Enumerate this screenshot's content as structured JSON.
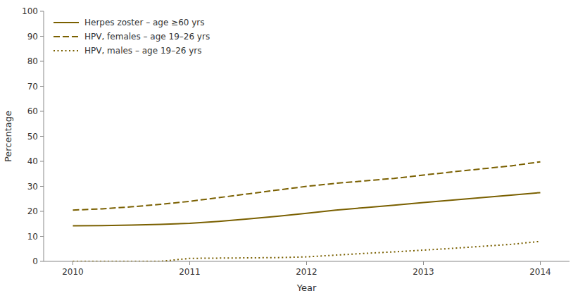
{
  "chart_data": {
    "type": "line",
    "x": [
      2010,
      2010.25,
      2010.5,
      2010.75,
      2011,
      2011.25,
      2011.5,
      2011.75,
      2012,
      2012.25,
      2012.5,
      2012.75,
      2013,
      2013.25,
      2013.5,
      2013.75,
      2014
    ],
    "series": [
      {
        "name": "Herpes zoster – age ≥60 yrs",
        "color": "#7a6000",
        "line_style": "solid",
        "values": [
          14.2,
          14.3,
          14.5,
          14.8,
          15.2,
          16.0,
          17.0,
          18.0,
          19.2,
          20.5,
          21.5,
          22.5,
          23.5,
          24.5,
          25.5,
          26.5,
          27.5
        ]
      },
      {
        "name": "HPV, females – age 19–26 yrs",
        "color": "#7a6000",
        "line_style": "dashed",
        "values": [
          20.5,
          21.0,
          21.8,
          22.8,
          24.0,
          25.5,
          27.0,
          28.5,
          30.0,
          31.2,
          32.2,
          33.2,
          34.5,
          35.8,
          37.0,
          38.2,
          39.8
        ]
      },
      {
        "name": "HPV, males – age 19–26 yrs",
        "color": "#7a6000",
        "line_style": "dotted",
        "values": [
          0,
          0,
          0,
          0,
          1.2,
          1.3,
          1.4,
          1.5,
          1.8,
          2.5,
          3.2,
          3.8,
          4.5,
          5.2,
          6.0,
          6.8,
          8.0
        ]
      }
    ],
    "xlabel": "Year",
    "ylabel": "Percentage",
    "xlim": [
      2009.75,
      2014.25
    ],
    "ylim": [
      0,
      100
    ],
    "xticks": [
      2010,
      2011,
      2012,
      2013,
      2014
    ],
    "yticks": [
      0,
      10,
      20,
      30,
      40,
      50,
      60,
      70,
      80,
      90,
      100
    ],
    "legend": "upper left",
    "grid": false
  }
}
